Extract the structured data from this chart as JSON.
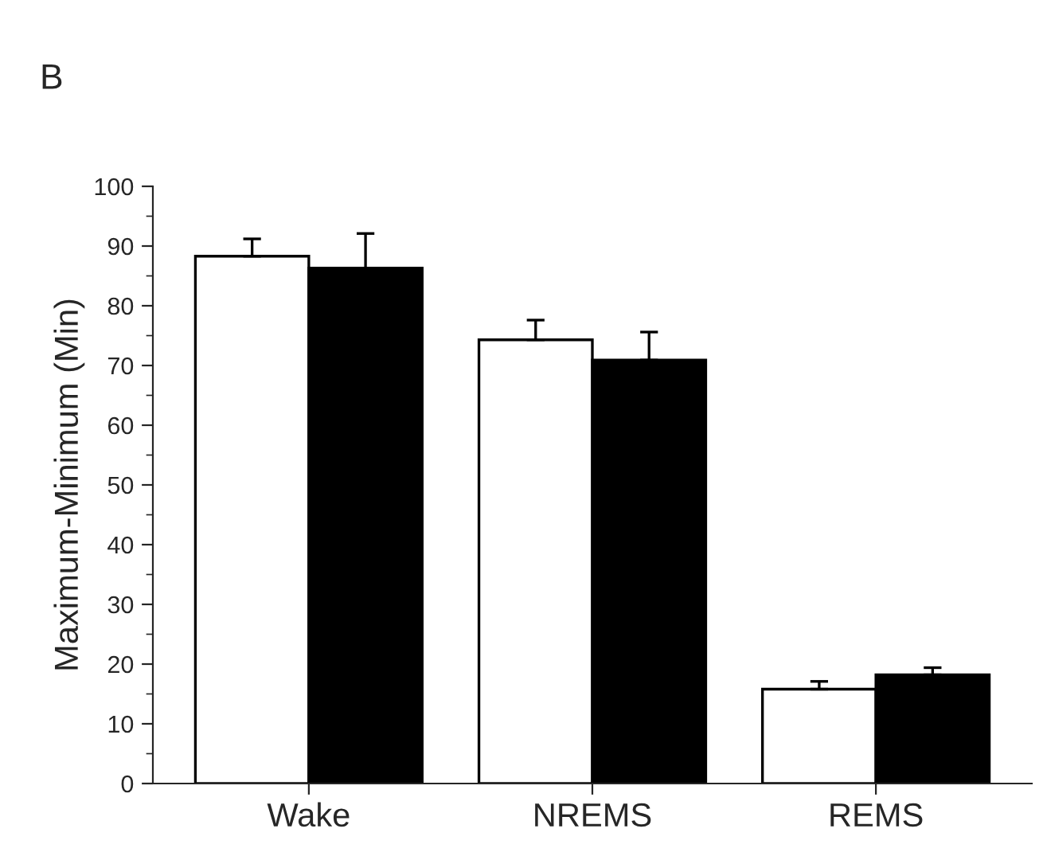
{
  "chart_data": {
    "type": "bar",
    "title": "B",
    "ylabel": "Maximum-Minimum (Min)",
    "categories": [
      "Wake",
      "NREMS",
      "REMS"
    ],
    "series": [
      {
        "color": "#ffffff",
        "values": [
          88.3,
          74.3,
          15.8
        ],
        "errors": [
          [
            88.3,
            91.2
          ],
          [
            74.3,
            77.6
          ],
          [
            15.8,
            17.1
          ]
        ]
      },
      {
        "color": "#000000",
        "values": [
          86.3,
          70.9,
          18.2
        ],
        "errors": [
          [
            86.3,
            92.1
          ],
          [
            70.9,
            75.6
          ],
          [
            18.2,
            19.4
          ]
        ]
      }
    ],
    "ylim": [
      0,
      100
    ],
    "yticks": [
      0,
      10,
      20,
      30,
      40,
      50,
      60,
      70,
      80,
      90,
      100
    ],
    "grid": false,
    "legend": false
  }
}
